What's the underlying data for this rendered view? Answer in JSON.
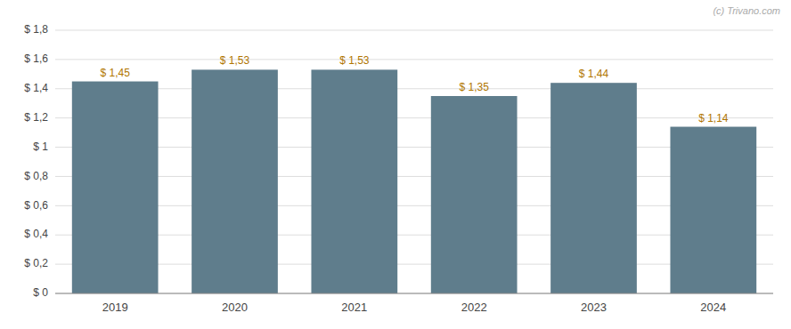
{
  "chart_data": {
    "type": "bar",
    "categories": [
      "2019",
      "2020",
      "2021",
      "2022",
      "2023",
      "2024"
    ],
    "values": [
      1.45,
      1.53,
      1.53,
      1.35,
      1.44,
      1.14
    ],
    "value_labels": [
      "$ 1,45",
      "$ 1,53",
      "$ 1,53",
      "$ 1,35",
      "$ 1,44",
      "$ 1,14"
    ],
    "data_labels": true,
    "color": "#5f7d8c",
    "ylim": [
      0,
      1.8
    ],
    "yticks": [
      {
        "value": 0,
        "label": "$ 0"
      },
      {
        "value": 0.2,
        "label": "$ 0,2"
      },
      {
        "value": 0.4,
        "label": "$ 0,4"
      },
      {
        "value": 0.6,
        "label": "$ 0,6"
      },
      {
        "value": 0.8,
        "label": "$ 0,8"
      },
      {
        "value": 1.0,
        "label": "$ 1"
      },
      {
        "value": 1.2,
        "label": "$ 1,2"
      },
      {
        "value": 1.4,
        "label": "$ 1,4"
      },
      {
        "value": 1.6,
        "label": "$ 1,6"
      },
      {
        "value": 1.8,
        "label": "$ 1,8"
      }
    ],
    "grid": true,
    "annotations": [
      "(c) Trivano.com"
    ]
  }
}
